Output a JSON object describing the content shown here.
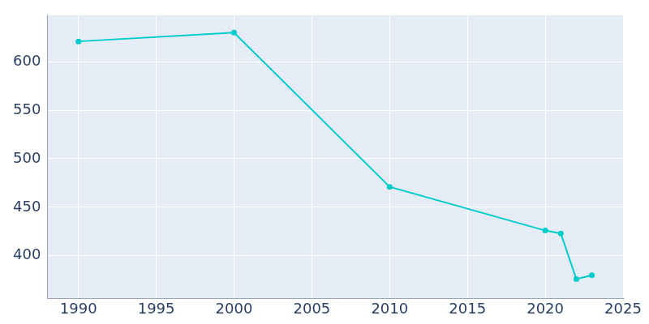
{
  "chart_data": {
    "type": "line",
    "x": [
      1990,
      2000,
      2010,
      2020,
      2021,
      2022,
      2023
    ],
    "values": [
      621,
      630,
      471,
      426,
      423,
      376,
      380
    ],
    "color": "#00cccc",
    "marker": "circle",
    "xlim": [
      1988,
      2025
    ],
    "xticks": [
      1990,
      1995,
      2000,
      2005,
      2010,
      2015,
      2020,
      2025
    ],
    "ylim": [
      356,
      648
    ],
    "yticks": [
      400,
      450,
      500,
      550,
      600
    ],
    "grid": true
  }
}
